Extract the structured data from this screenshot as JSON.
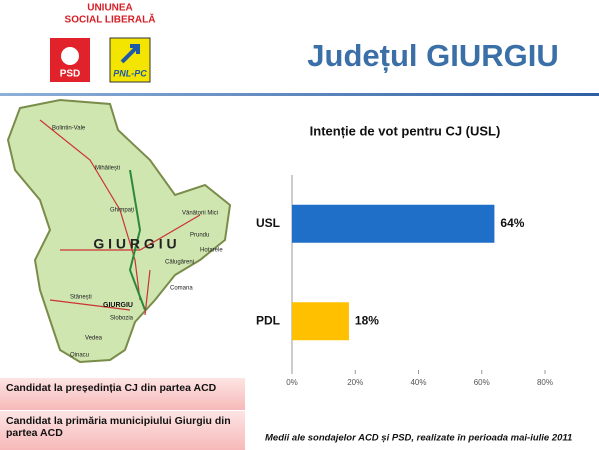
{
  "header": {
    "logo_line1": "UNIUNEA",
    "logo_line2": "SOCIAL LIBERALĂ",
    "logo_psd": "PSD",
    "logo_pnl": "PNL-PC",
    "title": "Județul GIURGIU"
  },
  "map": {
    "county": "G I U R G I U",
    "city": "GIURGIU",
    "towns": [
      "Bolintin-Vale",
      "Mihăilești",
      "Ghimpați",
      "Vânătorii Mici",
      "Prundu",
      "Călugăreni",
      "Comana",
      "Stănești",
      "Slobozia",
      "Vedea",
      "Oinacu",
      "Hotarele"
    ]
  },
  "chart_data": {
    "type": "hbar",
    "title": "Intenție de vot pentru CJ (USL)",
    "categories": [
      "USL",
      "PDL"
    ],
    "values": [
      64,
      18
    ],
    "value_labels": [
      "64%",
      "18%"
    ],
    "colors": [
      "#1f6fc8",
      "#ffc000"
    ],
    "xlim": [
      0,
      80
    ],
    "xticks": [
      {
        "value": 0,
        "label": "0%"
      },
      {
        "value": 20,
        "label": "20%"
      },
      {
        "value": 40,
        "label": "40%"
      },
      {
        "value": 60,
        "label": "60%"
      },
      {
        "value": 80,
        "label": "80%"
      }
    ],
    "grid": false
  },
  "notes": [
    "Candidat la președinția CJ din partea ACD",
    "Candidat la primăria municipiului Giurgiu din partea ACD"
  ],
  "footnote": "Medii ale sondajelor ACD și PSD, realizate în perioada mai-iulie 2011"
}
